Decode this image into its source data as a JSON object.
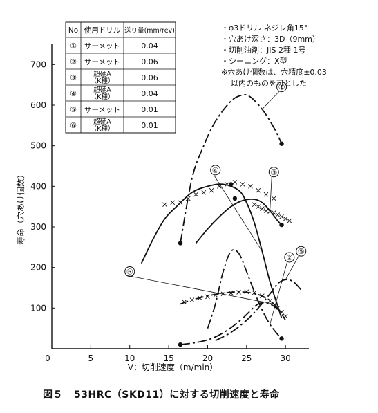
{
  "chart_data": {
    "type": "line",
    "title": "53HRC（SKD11）に対する切削速度と寿命",
    "figure_label": "図５",
    "xlabel": "V：切削速度（m/min）",
    "ylabel": "寿命（穴あけ個数）",
    "xlim": [
      0,
      33
    ],
    "ylim": [
      0,
      750
    ],
    "xticks": [
      0,
      5,
      10,
      15,
      20,
      25,
      30
    ],
    "yticks": [
      0,
      100,
      200,
      300,
      400,
      500,
      600,
      700
    ],
    "x_origin_label": "0",
    "grid": false,
    "legend_table": {
      "headers": [
        "No",
        "使用ドリル",
        "送り量(mm/rev)"
      ],
      "rows": [
        {
          "no": "①",
          "drill": "サーメット",
          "feed": "0.04"
        },
        {
          "no": "②",
          "drill": "サーメット",
          "feed": "0.06"
        },
        {
          "no": "③",
          "drill": "超硬A\n（K種）",
          "feed": "0.06"
        },
        {
          "no": "④",
          "drill": "超硬A\n（K種）",
          "feed": "0.04"
        },
        {
          "no": "⑤",
          "drill": "サーメット",
          "feed": "0.01"
        },
        {
          "no": "⑥",
          "drill": "超硬A\n（K種）",
          "feed": "0.01"
        }
      ]
    },
    "notes": [
      "・φ3ドリル ネジレ角15°",
      "・穴あけ深さ：3D（9mm）",
      "・切削油剤：JIS 2種 1号",
      "・シーニング：X型",
      "※穴あけ個数は、穴精度±0.03",
      "以内のものを可とした"
    ],
    "series": [
      {
        "name": "①",
        "style": "dash-dot",
        "points": [
          [
            16.5,
            260
          ],
          [
            18,
            420
          ],
          [
            19.5,
            500
          ],
          [
            21,
            560
          ],
          [
            23,
            610
          ],
          [
            24.5,
            625
          ],
          [
            25.5,
            620
          ],
          [
            27,
            590
          ],
          [
            28.5,
            545
          ],
          [
            29.5,
            505
          ]
        ],
        "markers": [
          [
            16.5,
            260
          ],
          [
            29.5,
            505
          ]
        ],
        "label_at": [
          29.5,
          645
        ]
      },
      {
        "name": "②",
        "style": "dash-dot",
        "points": [
          [
            20,
            50
          ],
          [
            21,
            110
          ],
          [
            22,
            190
          ],
          [
            23,
            240
          ],
          [
            24,
            235
          ],
          [
            25,
            190
          ],
          [
            26,
            140
          ],
          [
            27,
            95
          ],
          [
            28,
            60
          ],
          [
            29,
            35
          ],
          [
            29.5,
            25
          ]
        ],
        "markers": [
          [
            29.5,
            25
          ]
        ],
        "label_at": [
          30.5,
          225
        ]
      },
      {
        "name": "③",
        "style": "solid",
        "points": [
          [
            18.5,
            260
          ],
          [
            20,
            295
          ],
          [
            21.5,
            325
          ],
          [
            23,
            350
          ],
          [
            24.5,
            365
          ],
          [
            26,
            368
          ],
          [
            27,
            360
          ],
          [
            28,
            340
          ],
          [
            29,
            315
          ],
          [
            29.5,
            305
          ]
        ],
        "markers": [
          [
            23.5,
            370
          ],
          [
            29.5,
            305
          ]
        ],
        "crosses": [
          [
            26,
            355
          ],
          [
            26.5,
            350
          ],
          [
            27,
            345
          ],
          [
            27.5,
            340
          ],
          [
            28,
            338
          ],
          [
            28.5,
            335
          ],
          [
            29,
            330
          ],
          [
            29.5,
            325
          ],
          [
            30,
            320
          ],
          [
            30.5,
            315
          ]
        ],
        "label_at": [
          28.5,
          435
        ]
      },
      {
        "name": "④",
        "style": "solid",
        "points": [
          [
            11.5,
            210
          ],
          [
            13,
            270
          ],
          [
            14.5,
            320
          ],
          [
            16,
            350
          ],
          [
            18,
            385
          ],
          [
            20,
            400
          ],
          [
            22,
            405
          ],
          [
            24,
            390
          ],
          [
            25,
            360
          ],
          [
            26,
            310
          ],
          [
            27,
            240
          ],
          [
            28,
            165
          ],
          [
            29,
            105
          ],
          [
            29.5,
            75
          ]
        ],
        "markers": [
          [
            23,
            405
          ]
        ],
        "crosses": [
          [
            14.5,
            355
          ],
          [
            15.5,
            360
          ],
          [
            16.5,
            360
          ],
          [
            17.5,
            370
          ],
          [
            18.5,
            380
          ],
          [
            19.5,
            385
          ],
          [
            20.5,
            390
          ],
          [
            21.5,
            400
          ],
          [
            22.5,
            405
          ],
          [
            23.5,
            410
          ],
          [
            24.5,
            405
          ],
          [
            25.5,
            400
          ],
          [
            26.5,
            390
          ],
          [
            27.5,
            380
          ],
          [
            28.5,
            370
          ]
        ],
        "label_at": [
          21,
          440
        ]
      },
      {
        "name": "⑤",
        "style": "dash-dot",
        "points": [
          [
            21,
            20
          ],
          [
            23,
            40
          ],
          [
            25,
            70
          ],
          [
            26.5,
            100
          ],
          [
            28,
            135
          ],
          [
            29,
            160
          ],
          [
            30,
            170
          ],
          [
            31,
            165
          ],
          [
            32,
            145
          ]
        ],
        "markers": [],
        "label_at": [
          32,
          240
        ]
      },
      {
        "name": "⑥",
        "style": "mixed",
        "points": [
          [
            16.5,
            110
          ],
          [
            18,
            120
          ],
          [
            20,
            130
          ],
          [
            22,
            137
          ],
          [
            24,
            140
          ],
          [
            26,
            136
          ],
          [
            27.5,
            125
          ],
          [
            28.5,
            110
          ],
          [
            29.5,
            85
          ],
          [
            30,
            70
          ]
        ],
        "markers": [
          [
            16.5,
            10
          ]
        ],
        "crosses": [
          [
            17,
            115
          ],
          [
            18,
            120
          ],
          [
            19,
            125
          ],
          [
            20,
            128
          ],
          [
            21,
            132
          ],
          [
            22,
            135
          ],
          [
            23,
            137
          ],
          [
            24,
            139
          ],
          [
            25,
            140
          ],
          [
            26,
            138
          ],
          [
            27,
            130
          ],
          [
            28,
            118
          ],
          [
            29,
            100
          ],
          [
            29.5,
            90
          ],
          [
            30,
            80
          ]
        ],
        "extra_path": [
          [
            16.5,
            10
          ],
          [
            18.5,
            15
          ],
          [
            20.5,
            25
          ],
          [
            22.5,
            45
          ],
          [
            24.5,
            75
          ],
          [
            26.5,
            110
          ],
          [
            28,
            110
          ],
          [
            29.5,
            90
          ]
        ],
        "label_at": [
          10,
          190
        ]
      }
    ]
  }
}
